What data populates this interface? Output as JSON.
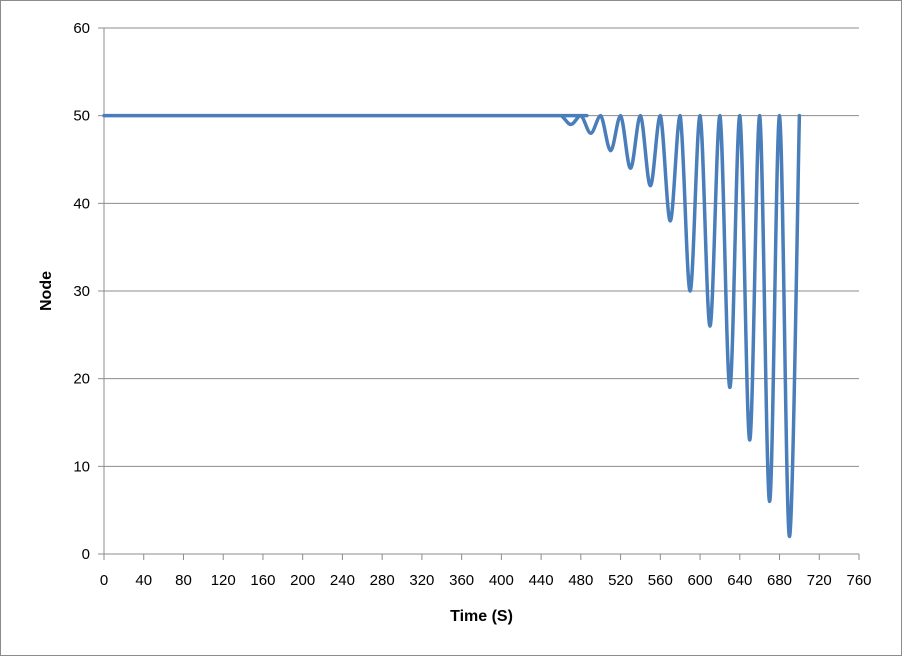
{
  "chart_data": {
    "type": "line",
    "title": "",
    "xlabel": "Time (S)",
    "ylabel": "Node",
    "xlim": [
      0,
      760
    ],
    "ylim": [
      0,
      60
    ],
    "x_ticks": [
      0,
      40,
      80,
      120,
      160,
      200,
      240,
      280,
      320,
      360,
      400,
      440,
      480,
      520,
      560,
      600,
      640,
      680,
      720,
      760
    ],
    "y_ticks": [
      0,
      10,
      20,
      30,
      40,
      50,
      60
    ],
    "grid": "horizontal",
    "legend": "none",
    "series_color": "#4a7ebb",
    "grid_color": "#8c8c8c",
    "series": [
      {
        "x": [
          0,
          450,
          460,
          470,
          480,
          490,
          500,
          510,
          520,
          530,
          540,
          550,
          560,
          570,
          580,
          590,
          600,
          610,
          620,
          630,
          640,
          650,
          660,
          670,
          680,
          690,
          700
        ],
        "values": [
          50,
          50,
          50,
          49,
          50,
          48,
          50,
          46,
          50,
          44,
          50,
          42,
          50,
          38,
          50,
          30,
          50,
          26,
          50,
          19,
          50,
          13,
          50,
          6,
          50,
          2,
          50
        ]
      }
    ]
  }
}
